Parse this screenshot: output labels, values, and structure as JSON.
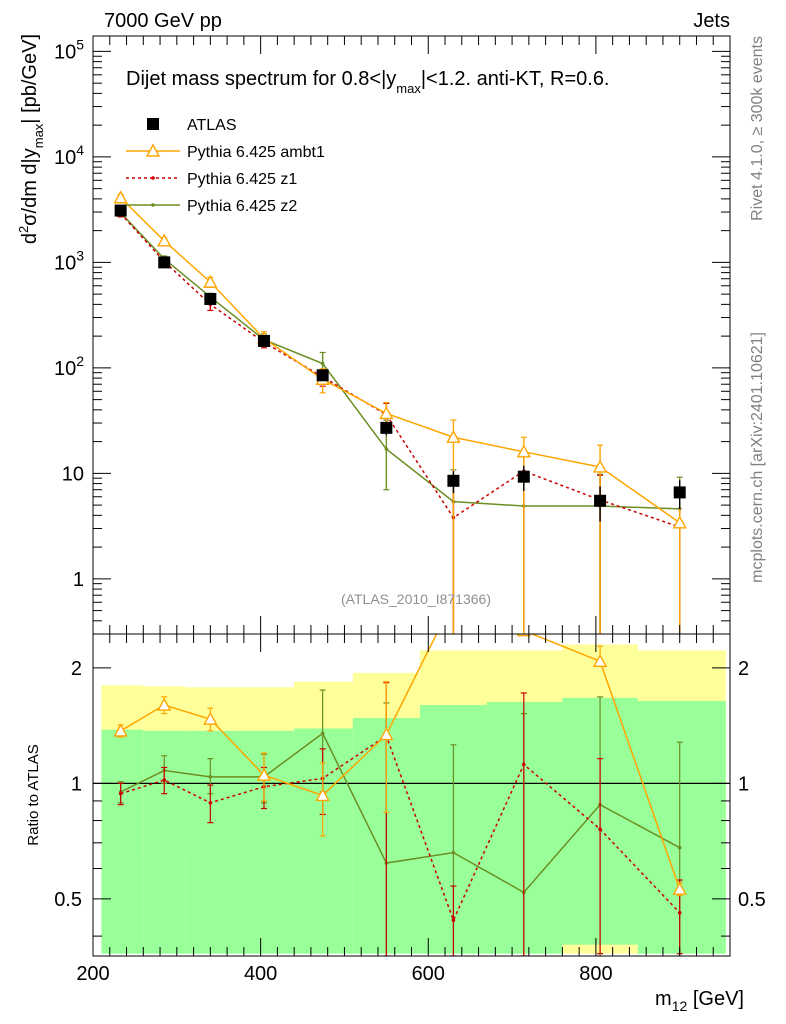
{
  "header": {
    "energy_label": "7000 GeV pp",
    "category_label": "Jets",
    "rivet_label": "Rivet 4.1.0, ≥ 300k events",
    "mcplots_label": "mcplots.cern.ch [arXiv:2401.10621]"
  },
  "chart_data": [
    {
      "type": "line",
      "panel": "main",
      "title_parts": {
        "a": "Dijet mass spectrum for 0.8<|y",
        "sub": "max",
        "b": "|<1.2.  anti-KT, R=0.6."
      },
      "ylabel_parts": {
        "d": "d",
        "sup": "2",
        "mid": "σ/dm d|y",
        "sub": "max",
        "end": "| [pb/GeV]"
      },
      "yscale": "log",
      "ylim": [
        0.3,
        140000
      ],
      "xlim": [
        200,
        960
      ],
      "ytick_labels": [
        {
          "base": "10",
          "exp": "5",
          "value": 100000
        },
        {
          "base": "10",
          "exp": "4",
          "value": 10000
        },
        {
          "base": "10",
          "exp": "3",
          "value": 1000
        },
        {
          "base": "10",
          "exp": "2",
          "value": 100
        },
        {
          "label": "10",
          "value": 10
        },
        {
          "label": "1",
          "value": 1
        }
      ],
      "analysis_label": "(ATLAS_2010_I871366)",
      "legend": [
        "ATLAS",
        "Pythia 6.425 ambt1",
        "Pythia 6.425 z1",
        "Pythia 6.425 z2"
      ],
      "x": [
        233,
        285,
        340,
        404,
        474,
        550,
        630,
        714,
        805,
        900
      ],
      "series": [
        {
          "name": "ATLAS",
          "color": "#000000",
          "marker": "square",
          "values": [
            3100,
            1000,
            450,
            180,
            85,
            27,
            8.5,
            9.3,
            5.5,
            6.6
          ],
          "err_lo": [
            200,
            60,
            30,
            15,
            10,
            4,
            2,
            2.5,
            2,
            2
          ],
          "err_hi": [
            200,
            60,
            30,
            15,
            10,
            4,
            2,
            2.5,
            2,
            2
          ]
        },
        {
          "name": "Pythia 6.425 ambt1",
          "color": "#ffa500",
          "marker": "triangle",
          "dash": "",
          "values": [
            4100,
            1600,
            650,
            190,
            78,
            37,
            22,
            16,
            11.5,
            3.4
          ],
          "err_lo": [
            300,
            120,
            70,
            30,
            20,
            10,
            22,
            16,
            11.5,
            3.4
          ],
          "err_hi": [
            300,
            120,
            70,
            30,
            20,
            10,
            10,
            6,
            7,
            3
          ]
        },
        {
          "name": "Pythia 6.425 z1",
          "color": "#cc0000",
          "marker": "dot",
          "dash": "3,3",
          "values": [
            2900,
            1020,
            400,
            175,
            82,
            36,
            3.8,
            10.5,
            5.6,
            3.1
          ],
          "err_lo": [
            200,
            70,
            50,
            20,
            15,
            10,
            3.8,
            10.5,
            5.6,
            3.1
          ],
          "err_hi": [
            200,
            70,
            50,
            20,
            15,
            10,
            3.8,
            6,
            4,
            3
          ]
        },
        {
          "name": "Pythia 6.425 z2",
          "color": "#6b8e23",
          "marker": "dot",
          "dash": "",
          "values": [
            2950,
            1080,
            470,
            185,
            110,
            17,
            5.4,
            4.9,
            4.9,
            4.6
          ],
          "err_lo": [
            200,
            70,
            40,
            25,
            30,
            10,
            5.4,
            4.9,
            4.9,
            4.6
          ],
          "err_hi": [
            200,
            70,
            40,
            25,
            30,
            15,
            5.4,
            4.9,
            4.9,
            4.6
          ]
        }
      ]
    },
    {
      "type": "line",
      "panel": "ratio",
      "ylabel": "Ratio to ATLAS",
      "yscale": "log",
      "ylim": [
        0.355,
        2.45
      ],
      "xlim": [
        200,
        960
      ],
      "xlabel_parts": {
        "m": "m",
        "sub": "12",
        "unit": " [GeV]"
      },
      "xticks": [
        200,
        400,
        600,
        800
      ],
      "xtick_labels": [
        "200",
        "400",
        "600",
        "800"
      ],
      "yticks": [
        0.5,
        1,
        2
      ],
      "ytick_labels": [
        "0.5",
        "1",
        "2"
      ],
      "bin_edges": [
        210,
        260,
        310,
        370,
        440,
        510,
        590,
        670,
        760,
        850,
        955
      ],
      "band_outer": {
        "color": "#ffff99",
        "lo": [
          0.64,
          0.65,
          0.66,
          0.65,
          0.62,
          0.55,
          0.36,
          0.36,
          0.36,
          0.36
        ],
        "hi": [
          1.8,
          1.79,
          1.78,
          1.78,
          1.84,
          1.94,
          2.22,
          2.22,
          2.3,
          2.22
        ]
      },
      "band_inner": {
        "color": "#99ff99",
        "lo": [
          0.36,
          0.36,
          0.36,
          0.36,
          0.36,
          0.36,
          0.36,
          0.36,
          0.38,
          0.36
        ],
        "hi": [
          1.38,
          1.37,
          1.37,
          1.37,
          1.39,
          1.48,
          1.6,
          1.63,
          1.67,
          1.64
        ]
      },
      "series": [
        {
          "name": "Pythia 6.425 ambt1",
          "color": "#ffa500",
          "marker": "triangle",
          "dash": "",
          "values": [
            1.37,
            1.6,
            1.47,
            1.05,
            0.93,
            1.34,
            3.0,
            2.5,
            2.08,
            0.53
          ],
          "err_lo": [
            0.05,
            0.08,
            0.1,
            0.15,
            0.2,
            0.5,
            0,
            0,
            0,
            0.02
          ],
          "err_hi": [
            0.05,
            0.08,
            0.1,
            0.15,
            0.2,
            0.5,
            0,
            0,
            0.2,
            0.02
          ]
        },
        {
          "name": "Pythia 6.425 z1",
          "color": "#cc0000",
          "marker": "dot",
          "dash": "3,3",
          "values": [
            0.94,
            1.02,
            0.89,
            0.98,
            1.03,
            1.33,
            0.44,
            1.12,
            0.76,
            0.46
          ],
          "err_lo": [
            0.06,
            0.08,
            0.1,
            0.12,
            0.2,
            1.0,
            0.1,
            1.0,
            0.4,
            0.1
          ],
          "err_hi": [
            0.06,
            0.08,
            0.1,
            0.12,
            0.2,
            0.5,
            0.1,
            0.6,
            0.4,
            0.1
          ]
        },
        {
          "name": "Pythia 6.425 z2",
          "color": "#6b8e23",
          "marker": "dot",
          "dash": "",
          "values": [
            0.95,
            1.08,
            1.04,
            1.04,
            1.35,
            0.62,
            0.66,
            0.52,
            0.88,
            0.68
          ],
          "err_lo": [
            0.06,
            0.08,
            0.1,
            0.15,
            0.4,
            0.4,
            0.5,
            0.5,
            0.6,
            0.5
          ],
          "err_hi": [
            0.06,
            0.1,
            0.12,
            0.15,
            0.4,
            1.0,
            0.6,
            1.0,
            0.8,
            0.6
          ]
        }
      ]
    }
  ]
}
